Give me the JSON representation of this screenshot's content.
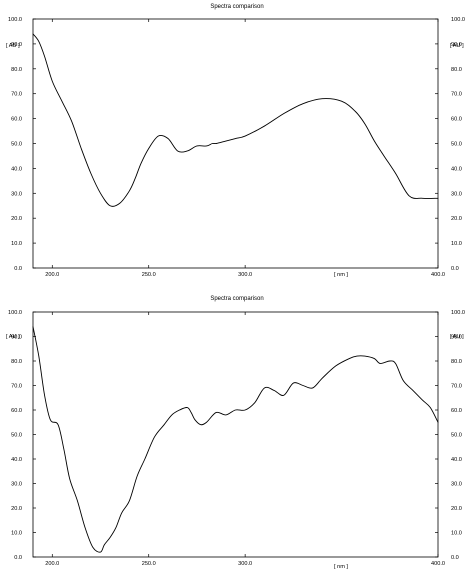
{
  "chart_data": [
    {
      "type": "line",
      "title": "Spectra comparison",
      "xlabel": "[ nm ]",
      "ylabel": "[ AU ]",
      "xlim": [
        190,
        400
      ],
      "ylim": [
        0,
        100
      ],
      "x_ticks": [
        {
          "value": 200,
          "label": "200.0"
        },
        {
          "value": 250,
          "label": "250.0"
        },
        {
          "value": 300,
          "label": "300.0"
        },
        {
          "value": 400,
          "label": "400.0"
        }
      ],
      "y_ticks": [
        {
          "value": 0,
          "label": "0.0"
        },
        {
          "value": 10,
          "label": "10.0"
        },
        {
          "value": 20,
          "label": "20.0"
        },
        {
          "value": 30,
          "label": "30.0"
        },
        {
          "value": 40,
          "label": "40.0"
        },
        {
          "value": 50,
          "label": "50.0"
        },
        {
          "value": 60,
          "label": "60.0"
        },
        {
          "value": 70,
          "label": "70.0"
        },
        {
          "value": 80,
          "label": "80.0"
        },
        {
          "value": 90,
          "label": "90.0"
        },
        {
          "value": 100,
          "label": "100.0"
        }
      ],
      "series": [
        {
          "x": [
            190,
            193,
            196,
            200,
            205,
            210,
            215,
            220,
            225,
            230,
            235,
            240,
            243,
            246,
            250,
            255,
            260,
            265,
            270,
            275,
            280,
            283,
            285,
            290,
            295,
            300,
            310,
            320,
            330,
            340,
            350,
            357,
            362,
            367,
            372,
            378,
            385,
            392,
            400
          ],
          "y": [
            94,
            91,
            85,
            75,
            67,
            59,
            48,
            38,
            30,
            25,
            26,
            31,
            36,
            42,
            48,
            53,
            52,
            47,
            47,
            49,
            49,
            50,
            50,
            51,
            52,
            53,
            57,
            62,
            66,
            68,
            67,
            63,
            58,
            51,
            45,
            38,
            29,
            28,
            28
          ]
        }
      ]
    },
    {
      "type": "line",
      "title": "Spectra comparison",
      "xlabel": "[ nm ]",
      "ylabel": "[ AU ]",
      "xlim": [
        190,
        400
      ],
      "ylim": [
        0,
        100
      ],
      "x_ticks": [
        {
          "value": 200,
          "label": "200.0"
        },
        {
          "value": 250,
          "label": "250.0"
        },
        {
          "value": 300,
          "label": "300.0"
        },
        {
          "value": 400,
          "label": "400.0"
        }
      ],
      "y_ticks": [
        {
          "value": 0,
          "label": "0.0"
        },
        {
          "value": 10,
          "label": "10.0"
        },
        {
          "value": 20,
          "label": "20.0"
        },
        {
          "value": 30,
          "label": "30.0"
        },
        {
          "value": 40,
          "label": "40.0"
        },
        {
          "value": 50,
          "label": "50.0"
        },
        {
          "value": 60,
          "label": "60.0"
        },
        {
          "value": 70,
          "label": "70.0"
        },
        {
          "value": 80,
          "label": "80.0"
        },
        {
          "value": 90,
          "label": "90.0"
        },
        {
          "value": 100,
          "label": "100.0"
        }
      ],
      "series": [
        {
          "x": [
            190,
            193,
            196,
            199,
            203,
            206,
            209,
            213,
            217,
            221,
            225,
            227,
            230,
            233,
            236,
            240,
            244,
            248,
            253,
            258,
            262,
            266,
            270,
            272,
            274,
            277,
            280,
            285,
            290,
            295,
            300,
            305,
            310,
            315,
            320,
            325,
            330,
            335,
            340,
            347,
            354,
            358,
            362,
            367,
            370,
            375,
            378,
            382,
            387,
            392,
            396,
            400
          ],
          "y": [
            94,
            82,
            66,
            56,
            54,
            44,
            32,
            23,
            12,
            4,
            2,
            5,
            8,
            12,
            18,
            23,
            33,
            40,
            49,
            54,
            58,
            60,
            61,
            59,
            56,
            54,
            55,
            59,
            58,
            60,
            60,
            63,
            69,
            68,
            66,
            71,
            70,
            69,
            73,
            78,
            81,
            82,
            82,
            81,
            79,
            80,
            79,
            72,
            68,
            64,
            61,
            55
          ]
        }
      ]
    }
  ]
}
